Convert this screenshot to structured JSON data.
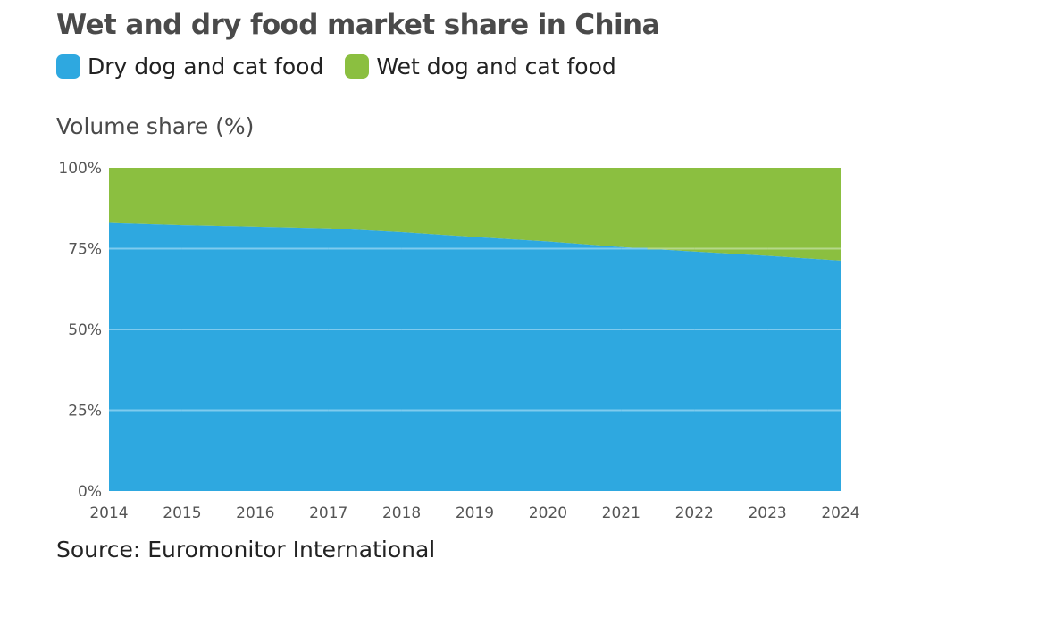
{
  "colors": {
    "dry": "#2ea8e0",
    "wet": "#8bbf40",
    "grid_on_dry": "#7fcbee",
    "grid_on_wet": "#b5d88a",
    "title": "#4a4a4a"
  },
  "chart_data": {
    "type": "area",
    "stacked": true,
    "title": "Wet and dry food market share in China",
    "ylabel": "Volume share (%)",
    "xlabel": "",
    "x": [
      "2014",
      "2015",
      "2016",
      "2017",
      "2018",
      "2019",
      "2020",
      "2021",
      "2022",
      "2023",
      "2024"
    ],
    "series": [
      {
        "name": "Dry dog and cat food",
        "color": "#2ea8e0",
        "values": [
          83.0,
          82.3,
          81.8,
          81.3,
          80.1,
          78.6,
          77.2,
          75.5,
          74.1,
          72.8,
          71.3
        ]
      },
      {
        "name": "Wet dog and cat food",
        "color": "#8bbf40",
        "values": [
          17.0,
          17.7,
          18.2,
          18.7,
          19.9,
          21.4,
          22.8,
          24.5,
          25.9,
          27.2,
          28.7
        ]
      }
    ],
    "ylim": [
      0,
      100
    ],
    "yticks": [
      0,
      25,
      50,
      75,
      100
    ],
    "ytick_labels": [
      "0%",
      "25%",
      "50%",
      "75%",
      "100%"
    ],
    "grid": true,
    "legend": "top-left",
    "source": "Source: Euromonitor International"
  }
}
